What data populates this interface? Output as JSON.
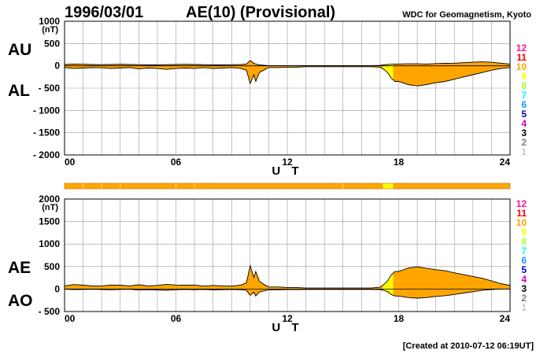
{
  "header": {
    "date": "1996/03/01",
    "index_title": "AE(10) (Provisional)",
    "organization": "WDC for Geomagnetism, Kyoto"
  },
  "footer": {
    "created": "[Created at 2010-07-12 06:19UT]"
  },
  "colors": {
    "fill": "#ffa500",
    "highlight": "#ffff00",
    "grid": "#999999",
    "line": "#000000"
  },
  "levels": [
    {
      "label": "12",
      "color": "#ff1493"
    },
    {
      "label": "11",
      "color": "#ff0000"
    },
    {
      "label": "10",
      "color": "#ffa500"
    },
    {
      "label": "9",
      "color": "#ffff00"
    },
    {
      "label": "8",
      "color": "#adff2f"
    },
    {
      "label": "7",
      "color": "#00ffff"
    },
    {
      "label": "6",
      "color": "#1e90ff"
    },
    {
      "label": "5",
      "color": "#0000cd"
    },
    {
      "label": "4",
      "color": "#cc00cc"
    },
    {
      "label": "3",
      "color": "#000000"
    },
    {
      "label": "2",
      "color": "#808080"
    },
    {
      "label": "1",
      "color": "#c8c8c8"
    }
  ],
  "status_bar": {
    "segments": [
      {
        "start": 0,
        "end": 17.15,
        "level": "10"
      },
      {
        "start": 17.15,
        "end": 17.7,
        "level": "9"
      },
      {
        "start": 17.7,
        "end": 24,
        "level": "10"
      }
    ]
  },
  "chart_data": [
    {
      "type": "area",
      "upper_label": "AU",
      "lower_label": "AL",
      "unit_label": "(nT)",
      "xlabel": "U T",
      "xlim": [
        0,
        24
      ],
      "ylim": [
        -2000,
        1000
      ],
      "xticks": [
        0,
        6,
        12,
        18,
        24
      ],
      "xtick_labels": [
        "00",
        "06",
        "12",
        "18",
        "24"
      ],
      "yticks": [
        1000,
        500,
        0,
        -500,
        -1000,
        -1500,
        -2000
      ],
      "ytick_labels": [
        "1000",
        "500",
        "0",
        "- 500",
        "- 1000",
        "- 1500",
        "- 2000"
      ],
      "highlight_x": [
        17.15,
        17.7
      ],
      "x": [
        0,
        0.5,
        1,
        1.5,
        2,
        2.5,
        3,
        3.5,
        4,
        4.5,
        5,
        5.5,
        6,
        6.5,
        7,
        7.5,
        8,
        8.5,
        9,
        9.5,
        9.8,
        9.9,
        10,
        10.1,
        10.2,
        10.3,
        10.5,
        10.8,
        11,
        11.5,
        12,
        12.5,
        13,
        13.5,
        14,
        14.5,
        15,
        15.5,
        16,
        16.5,
        17,
        17.2,
        17.4,
        17.6,
        17.8,
        18,
        18.5,
        19,
        19.5,
        20,
        20.5,
        21,
        21.5,
        22,
        22.5,
        23,
        23.5,
        24
      ],
      "series": [
        {
          "name": "AU",
          "values": [
            30,
            40,
            35,
            30,
            25,
            30,
            35,
            30,
            25,
            20,
            20,
            25,
            30,
            35,
            30,
            25,
            20,
            20,
            25,
            30,
            40,
            80,
            120,
            90,
            60,
            40,
            20,
            10,
            5,
            5,
            5,
            5,
            3,
            3,
            3,
            3,
            3,
            3,
            3,
            3,
            10,
            20,
            30,
            35,
            40,
            40,
            45,
            45,
            40,
            50,
            55,
            60,
            70,
            80,
            90,
            80,
            60,
            40
          ]
        },
        {
          "name": "AL",
          "values": [
            -40,
            -60,
            -50,
            -40,
            -45,
            -60,
            -50,
            -40,
            -70,
            -50,
            -60,
            -80,
            -60,
            -50,
            -60,
            -40,
            -60,
            -50,
            -40,
            -60,
            -100,
            -250,
            -400,
            -300,
            -200,
            -350,
            -150,
            -80,
            -40,
            -40,
            -30,
            -30,
            -20,
            -20,
            -20,
            -20,
            -20,
            -20,
            -20,
            -20,
            -30,
            -80,
            -150,
            -280,
            -350,
            -350,
            -420,
            -450,
            -420,
            -380,
            -350,
            -300,
            -250,
            -200,
            -150,
            -100,
            -60,
            -40
          ]
        }
      ]
    },
    {
      "type": "area",
      "upper_label": "AE",
      "lower_label": "AO",
      "unit_label": "(nT)",
      "xlabel": "U T",
      "xlim": [
        0,
        24
      ],
      "ylim": [
        -500,
        2000
      ],
      "xticks": [
        0,
        6,
        12,
        18,
        24
      ],
      "xtick_labels": [
        "00",
        "06",
        "12",
        "18",
        "24"
      ],
      "yticks": [
        2000,
        1500,
        1000,
        500,
        0,
        -500
      ],
      "ytick_labels": [
        "2000",
        "1500",
        "1000",
        "500",
        "0",
        "- 500"
      ],
      "highlight_x": [
        17.15,
        17.7
      ],
      "x": [
        0,
        0.5,
        1,
        1.5,
        2,
        2.5,
        3,
        3.5,
        4,
        4.5,
        5,
        5.5,
        6,
        6.5,
        7,
        7.5,
        8,
        8.5,
        9,
        9.5,
        9.8,
        9.9,
        10,
        10.1,
        10.2,
        10.3,
        10.5,
        10.8,
        11,
        11.5,
        12,
        12.5,
        13,
        13.5,
        14,
        14.5,
        15,
        15.5,
        16,
        16.5,
        17,
        17.2,
        17.4,
        17.6,
        17.8,
        18,
        18.5,
        19,
        19.5,
        20,
        20.5,
        21,
        21.5,
        22,
        22.5,
        23,
        23.5,
        24
      ],
      "series": [
        {
          "name": "AE",
          "values": [
            70,
            100,
            85,
            70,
            70,
            90,
            85,
            70,
            95,
            70,
            80,
            105,
            90,
            85,
            90,
            65,
            80,
            70,
            65,
            90,
            140,
            330,
            520,
            390,
            260,
            390,
            170,
            90,
            45,
            45,
            35,
            35,
            23,
            23,
            23,
            23,
            23,
            23,
            23,
            23,
            40,
            100,
            180,
            315,
            390,
            390,
            465,
            495,
            460,
            430,
            405,
            360,
            320,
            280,
            240,
            180,
            120,
            80
          ]
        },
        {
          "name": "AO",
          "values": [
            -5,
            -10,
            -8,
            -5,
            -10,
            -15,
            -8,
            -5,
            -23,
            -15,
            -20,
            -28,
            -15,
            -8,
            -15,
            -8,
            -20,
            -15,
            -8,
            -15,
            -30,
            -85,
            -140,
            -105,
            -70,
            -155,
            -65,
            -35,
            -18,
            -18,
            -13,
            -13,
            -9,
            -9,
            -9,
            -9,
            -9,
            -9,
            -9,
            -9,
            -10,
            -30,
            -60,
            -123,
            -155,
            -155,
            -188,
            -203,
            -190,
            -165,
            -148,
            -120,
            -90,
            -60,
            -30,
            -10,
            0,
            0
          ]
        }
      ]
    }
  ]
}
